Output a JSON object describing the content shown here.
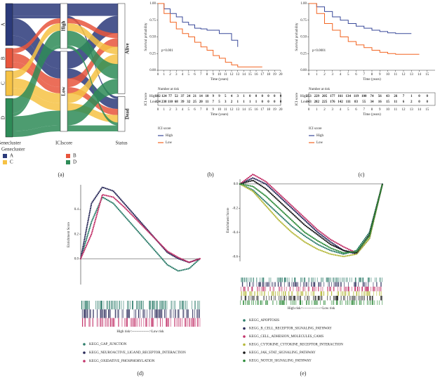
{
  "chart_data": [
    {
      "type": "sankey",
      "label": "(a)",
      "columns": [
        {
          "title": "Genecluster",
          "nodes": [
            "A",
            "B",
            "C",
            "D"
          ]
        },
        {
          "title": "ICIscore",
          "nodes": [
            "High",
            "Low"
          ]
        },
        {
          "title": "Status",
          "nodes": [
            "Alive",
            "Dead"
          ]
        }
      ],
      "colors": [
        "#2b3a7a",
        "#e8553c",
        "#f6c244",
        "#2e8b57"
      ],
      "flows": [
        [
          0,
          0,
          0,
          50
        ],
        [
          0,
          0,
          1,
          10
        ],
        [
          0,
          1,
          0,
          70
        ],
        [
          0,
          1,
          1,
          40
        ],
        [
          1,
          0,
          0,
          20
        ],
        [
          1,
          1,
          0,
          35
        ],
        [
          1,
          1,
          1,
          25
        ],
        [
          2,
          0,
          0,
          30
        ],
        [
          2,
          1,
          0,
          40
        ],
        [
          2,
          1,
          1,
          30
        ],
        [
          3,
          0,
          0,
          60
        ],
        [
          3,
          0,
          1,
          12
        ],
        [
          3,
          1,
          0,
          60
        ],
        [
          3,
          1,
          1,
          24
        ]
      ],
      "legend_title": "Genecluster"
    },
    {
      "type": "step",
      "label": "(b)",
      "xlabel": "Time (years)",
      "ylabel": "Survival probability",
      "annotation": "p=0.001",
      "xlim": [
        0,
        20
      ],
      "ylim": [
        0,
        1
      ],
      "xticks": [
        0,
        1,
        2,
        3,
        4,
        5,
        6,
        7,
        8,
        9,
        10,
        11,
        12,
        13,
        14,
        15,
        16,
        17,
        18,
        19,
        20
      ],
      "yticks": [
        {
          "value": 0,
          "label": "0.00"
        },
        {
          "value": 0.25,
          "label": "0.25"
        },
        {
          "value": 0.5,
          "label": "0.50"
        },
        {
          "value": 0.75,
          "label": "0.75"
        },
        {
          "value": 1,
          "label": "1.00"
        }
      ],
      "series": [
        {
          "name": "High",
          "color": "#3a4a9a",
          "x": [
            0,
            1,
            2,
            3,
            4,
            5,
            6,
            7,
            8,
            9,
            10,
            11,
            12,
            13
          ],
          "values": [
            1,
            0.92,
            0.85,
            0.8,
            0.72,
            0.68,
            0.63,
            0.62,
            0.6,
            0.6,
            0.55,
            0.55,
            0.45,
            0.35
          ]
        },
        {
          "name": "Low",
          "color": "#f26522",
          "x": [
            0,
            1,
            2,
            3,
            4,
            5,
            6,
            7,
            8,
            9,
            10,
            11,
            12,
            13,
            14,
            15,
            16,
            17
          ],
          "values": [
            1,
            0.85,
            0.72,
            0.62,
            0.55,
            0.5,
            0.42,
            0.35,
            0.3,
            0.22,
            0.18,
            0.12,
            0.08,
            0.05,
            0.05,
            0.05,
            0.05,
            0.05
          ]
        }
      ],
      "risk_table": {
        "title": "Number at risk",
        "ylabel": "ICI score",
        "xlabel": "Time (years)",
        "xticks": [
          0,
          1,
          2,
          3,
          4,
          5,
          6,
          7,
          8,
          9,
          10,
          11,
          12,
          13,
          14,
          15,
          16,
          17,
          18,
          19,
          20
        ],
        "rows": [
          {
            "name": "High",
            "values": [
              182,
              124,
              77,
              52,
              37,
              24,
              21,
              14,
              10,
              9,
              9,
              5,
              4,
              3,
              1,
              0,
              0,
              0,
              0,
              0,
              0
            ]
          },
          {
            "name": "Low",
            "values": [
              324,
              238,
              110,
              68,
              39,
              32,
              25,
              20,
              11,
              7,
              5,
              3,
              2,
              1,
              1,
              1,
              1,
              0,
              0,
              0,
              0
            ]
          }
        ]
      },
      "legend_title": "ICI score"
    },
    {
      "type": "step",
      "label": "(c)",
      "xlabel": "Time (years)",
      "ylabel": "Survival probability",
      "annotation": "p<0.0001",
      "xlim": [
        0,
        16
      ],
      "ylim": [
        0,
        1
      ],
      "xticks": [
        0,
        1,
        2,
        3,
        4,
        5,
        6,
        7,
        8,
        9,
        10,
        11,
        12,
        13,
        14,
        15
      ],
      "yticks": [
        {
          "value": 0,
          "label": "0.00"
        },
        {
          "value": 0.25,
          "label": "0.25"
        },
        {
          "value": 0.5,
          "label": "0.50"
        },
        {
          "value": 0.75,
          "label": "0.75"
        },
        {
          "value": 1,
          "label": "1.00"
        }
      ],
      "series": [
        {
          "name": "High",
          "color": "#3a4a9a",
          "x": [
            0,
            1,
            2,
            3,
            4,
            5,
            6,
            7,
            8,
            9,
            10,
            11,
            12,
            13
          ],
          "values": [
            1,
            0.95,
            0.88,
            0.8,
            0.75,
            0.7,
            0.66,
            0.63,
            0.6,
            0.58,
            0.56,
            0.55,
            0.55,
            0.55
          ]
        },
        {
          "name": "Low",
          "color": "#f26522",
          "x": [
            0,
            1,
            2,
            3,
            4,
            5,
            6,
            7,
            8,
            9,
            10,
            11,
            12,
            13,
            14
          ],
          "values": [
            1,
            0.85,
            0.7,
            0.6,
            0.5,
            0.43,
            0.38,
            0.34,
            0.3,
            0.27,
            0.25,
            0.24,
            0.24,
            0.24,
            0.24
          ]
        }
      ],
      "risk_table": {
        "title": "Number at risk",
        "ylabel": "ICI score",
        "xlabel": "Time (years)",
        "xticks": [
          0,
          1,
          2,
          3,
          4,
          5,
          6,
          7,
          8,
          9,
          10,
          11,
          12,
          13,
          14,
          15
        ],
        "rows": [
          {
            "name": "High",
            "values": [
              253,
              229,
              205,
              177,
              161,
              134,
              119,
              100,
              74,
              56,
              43,
              26,
              7,
              1,
              0,
              0
            ]
          },
          {
            "name": "Low",
            "values": [
              343,
              282,
              225,
              176,
              142,
              111,
              83,
              55,
              34,
              16,
              15,
              11,
              6,
              2,
              0,
              0
            ]
          }
        ]
      },
      "legend_title": "ICI score"
    },
    {
      "type": "line",
      "label": "(d)",
      "ylabel": "Enrichment Score",
      "rug_label": "High risk<--------------->Low risk",
      "ylim": [
        -0.21,
        0.6
      ],
      "yticks": [
        {
          "value": 0,
          "label": "0.0"
        },
        0.2,
        0.4
      ],
      "series": [
        {
          "name": "KEGG_GAP_JUNCTION",
          "color": "#2e7d6b",
          "values": [
            0,
            0.3,
            0.5,
            0.45,
            0.35,
            0.25,
            0.15,
            0.05,
            -0.05,
            -0.1,
            -0.08,
            0
          ]
        },
        {
          "name": "KEGG_NEUROACTIVE_LIGAND_RECEPTOR_INTERACTION",
          "color": "#2b2b5a",
          "values": [
            0,
            0.45,
            0.58,
            0.55,
            0.45,
            0.35,
            0.25,
            0.15,
            0.05,
            0,
            -0.03,
            0
          ]
        },
        {
          "name": "KEGG_OXIDATIVE_PHOSPHORYLATION",
          "color": "#c2336a",
          "values": [
            0,
            0.2,
            0.52,
            0.5,
            0.42,
            0.33,
            0.24,
            0.15,
            0.06,
            0.01,
            -0.03,
            0
          ]
        }
      ]
    },
    {
      "type": "line",
      "label": "(e)",
      "ylabel": "Enrichment Score",
      "rug_label": "High risk<--------------->Low risk",
      "ylim": [
        -0.64,
        0.04
      ],
      "yticks": [
        {
          "value": 0,
          "label": "0.0"
        },
        -0.2,
        -0.4,
        -0.6
      ],
      "series": [
        {
          "name": "KEGG_APOPTOSIS",
          "color": "#2e7d6b",
          "values": [
            0,
            -0.05,
            -0.15,
            -0.25,
            -0.35,
            -0.43,
            -0.5,
            -0.55,
            -0.58,
            -0.55,
            -0.4,
            0
          ]
        },
        {
          "name": "KEGG_B_CELL_RECEPTOR_SIGNALING_PATHWAY",
          "color": "#2b2b5a",
          "values": [
            0,
            0.05,
            0,
            -0.1,
            -0.2,
            -0.3,
            -0.4,
            -0.48,
            -0.55,
            -0.58,
            -0.45,
            0
          ]
        },
        {
          "name": "KEGG_CELL_ADHESION_MOLECULES_CAMS",
          "color": "#c2336a",
          "values": [
            0,
            0.08,
            0.02,
            -0.08,
            -0.18,
            -0.28,
            -0.38,
            -0.46,
            -0.52,
            -0.57,
            -0.42,
            0
          ]
        },
        {
          "name": "KEGG_CYTOKINE_CYTOKINE_RECEPTOR_INTERACTION",
          "color": "#b5b83a",
          "values": [
            0,
            -0.06,
            -0.18,
            -0.3,
            -0.4,
            -0.48,
            -0.54,
            -0.58,
            -0.6,
            -0.58,
            -0.45,
            0
          ]
        },
        {
          "name": "KEGG_JAK_STAT_SIGNALING_PATHWAY",
          "color": "#1a1a1a",
          "values": [
            0,
            0.03,
            -0.04,
            -0.14,
            -0.24,
            -0.34,
            -0.42,
            -0.5,
            -0.55,
            -0.57,
            -0.42,
            0
          ]
        },
        {
          "name": "KEGG_NOTCH_SIGNALING_PATHWAY",
          "color": "#2e8b3a",
          "values": [
            0,
            -0.02,
            -0.1,
            -0.2,
            -0.3,
            -0.4,
            -0.47,
            -0.53,
            -0.57,
            -0.56,
            -0.43,
            0
          ]
        }
      ]
    }
  ]
}
